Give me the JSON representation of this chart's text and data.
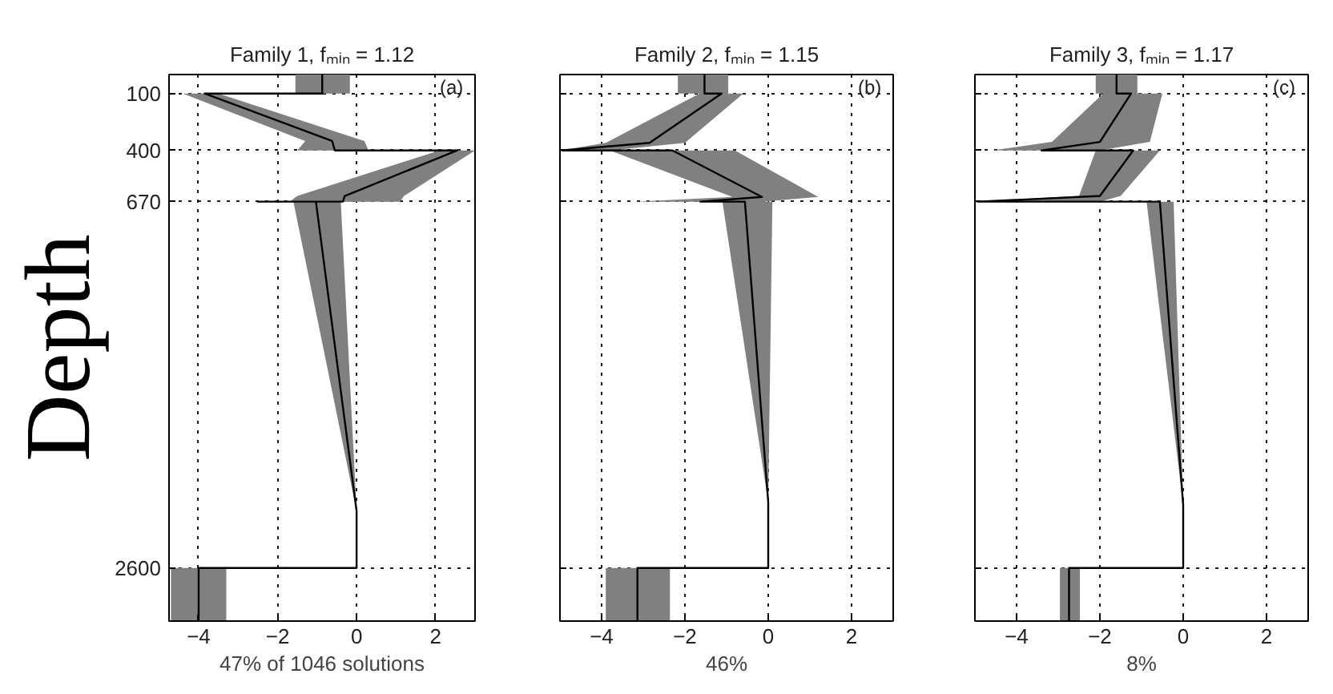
{
  "chart_data": [
    {
      "type": "line",
      "title": "Family 1, fₘᵢₙ = 1.12",
      "xlabel": "47% of 1046 solutions",
      "ylabel": "Depth",
      "orientation": "horizontal",
      "xlim": [
        -4.75,
        3
      ],
      "xticks": [
        -4,
        -2,
        0,
        2
      ],
      "ylim": [
        2880,
        0
      ],
      "yticks": [
        100,
        400,
        670,
        2600
      ],
      "grid": true,
      "annotations": [
        "(a)"
      ],
      "series": [
        {
          "color": "#000000",
          "x": [
            0,
            100,
            100,
            350,
            400,
            400,
            640,
            670,
            670,
            670,
            2300,
            2600,
            2600,
            2880
          ],
          "values": [
            -0.87,
            -0.87,
            -3.85,
            -0.62,
            -0.55,
            2.55,
            -0.3,
            -0.35,
            -2.5,
            -1.03,
            0,
            0,
            -4.0,
            -4.0
          ],
          "lower": [
            -1.55,
            -1.55,
            -4.4,
            -1.3,
            -1.5,
            2.1,
            -1.5,
            -1.7,
            -3.7,
            -1.6,
            0,
            0,
            -4.7,
            -4.7
          ],
          "upper": [
            -0.17,
            -0.17,
            -3.5,
            0.2,
            0.3,
            3.0,
            1.2,
            1.1,
            -0.4,
            -0.4,
            0,
            0,
            -3.3,
            -3.3
          ]
        }
      ]
    },
    {
      "type": "line",
      "title": "Family 2, fₘᵢₙ = 1.15",
      "xlabel": "46%",
      "orientation": "horizontal",
      "xlim": [
        -5,
        3
      ],
      "xticks": [
        -4,
        -2,
        0,
        2
      ],
      "ylim": [
        2880,
        0
      ],
      "yticks": [
        100,
        400,
        670,
        2600
      ],
      "grid": true,
      "tick_labels": "x",
      "annotations": [
        "(b)"
      ],
      "series": [
        {
          "color": "#000000",
          "x": [
            0,
            100,
            100,
            360,
            400,
            400,
            645,
            670,
            670,
            2255,
            2600,
            2600,
            2880
          ],
          "values": [
            -1.53,
            -1.53,
            -1.12,
            -2.85,
            -4.95,
            -2.3,
            -0.15,
            -1.63,
            -0.56,
            0,
            0,
            -3.14,
            -3.14
          ],
          "lower": [
            -2.17,
            -2.17,
            -1.65,
            -3.9,
            -4.98,
            -3.8,
            -0.86,
            -3.23,
            -1.1,
            0,
            0,
            -3.9,
            -3.9
          ],
          "upper": [
            -0.96,
            -0.96,
            -0.6,
            -2.0,
            -3.8,
            -0.8,
            1.2,
            -0.15,
            0.1,
            0,
            0,
            -2.36,
            -2.36
          ]
        }
      ]
    },
    {
      "type": "line",
      "title": "Family 3, fₘᵢₙ = 1.17",
      "xlabel": "8%",
      "orientation": "horizontal",
      "xlim": [
        -5,
        3
      ],
      "xticks": [
        -4,
        -2,
        0,
        2
      ],
      "ylim": [
        2880,
        0
      ],
      "yticks": [
        100,
        400,
        670,
        2600
      ],
      "grid": true,
      "tick_labels": "x",
      "annotations": [
        "(c)"
      ],
      "series": [
        {
          "color": "#000000",
          "x": [
            0,
            100,
            100,
            355,
            400,
            400,
            640,
            670,
            670,
            2270,
            2600,
            2600,
            2880
          ],
          "values": [
            -1.6,
            -1.6,
            -1.25,
            -2.0,
            -3.4,
            -1.2,
            -2.0,
            -4.94,
            -0.56,
            0,
            0,
            -2.74,
            -2.74
          ],
          "lower": [
            -2.1,
            -2.1,
            -1.92,
            -3.15,
            -4.6,
            -2.1,
            -2.5,
            -4.96,
            -0.88,
            0,
            0,
            -2.96,
            -2.96
          ],
          "upper": [
            -1.1,
            -1.1,
            -0.5,
            -0.8,
            -2.0,
            -0.56,
            -1.5,
            -2.0,
            -0.23,
            0,
            0,
            -2.48,
            -2.48
          ]
        }
      ]
    }
  ]
}
